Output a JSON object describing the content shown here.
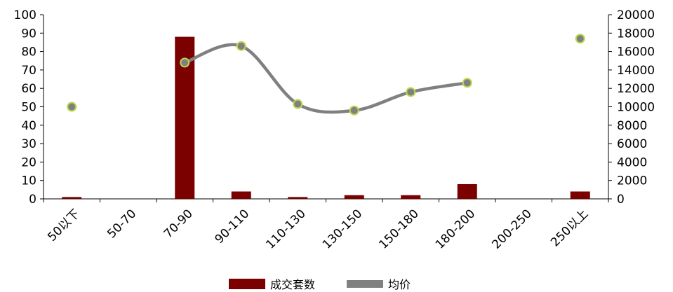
{
  "chart_data": {
    "type": "bar",
    "categories": [
      "50以下",
      "50-70",
      "70-90",
      "90-110",
      "110-130",
      "130-150",
      "150-180",
      "180-200",
      "200-250",
      "250以上"
    ],
    "series": [
      {
        "name": "成交套数",
        "type": "bar",
        "axis": "left",
        "color": "#7B0000",
        "values": [
          1,
          0,
          88,
          4,
          1,
          2,
          2,
          8,
          0,
          4
        ]
      },
      {
        "name": "均价",
        "type": "line",
        "axis": "right",
        "color": "#808080",
        "marker_color": "#B7D94A",
        "values": [
          10000,
          null,
          14800,
          16600,
          10300,
          9600,
          11600,
          12600,
          null,
          17400
        ]
      }
    ],
    "ylim_left": [
      0,
      100
    ],
    "yticks_left": [
      "0",
      "10",
      "20",
      "30",
      "40",
      "50",
      "60",
      "70",
      "80",
      "90",
      "100"
    ],
    "ylim_right": [
      0,
      20000
    ],
    "yticks_right": [
      "0",
      "2000",
      "4000",
      "6000",
      "8000",
      "10000",
      "12000",
      "14000",
      "16000",
      "18000",
      "20000"
    ],
    "legend": {
      "position": "bottom",
      "bar_label": "成交套数",
      "line_label": "均价"
    },
    "grid": false,
    "title": "",
    "xlabel": "",
    "ylabel": ""
  }
}
